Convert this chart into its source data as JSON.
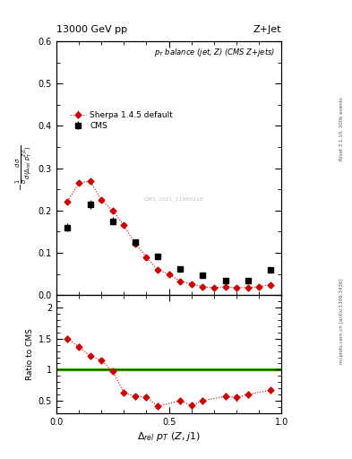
{
  "title_top": "13000 GeV pp",
  "title_right": "Z+Jet",
  "plot_title": "p_{T} balance (jet, Z) (CMS Z+jets)",
  "xlabel": "\\Delta_{rel} p_{T} (Z,j1)",
  "ylabel_main": "-1/sigma dsigma/d(Delta_rel p_T^{Zj1})",
  "ylabel_ratio": "Ratio to CMS",
  "watermark": "CMS_2021_11966118",
  "rivet_text": "Rivet 3.1.10, 300k events",
  "arxiv_text": "mcplots.cern.ch [arXiv:1306.3436]",
  "cms_x": [
    0.05,
    0.15,
    0.25,
    0.35,
    0.45,
    0.55,
    0.65,
    0.75,
    0.85,
    0.95
  ],
  "cms_y": [
    0.16,
    0.215,
    0.175,
    0.125,
    0.092,
    0.063,
    0.047,
    0.035,
    0.035,
    0.06
  ],
  "cms_yerr": [
    0.01,
    0.01,
    0.01,
    0.008,
    0.007,
    0.005,
    0.004,
    0.003,
    0.003,
    0.005
  ],
  "sherpa_x": [
    0.05,
    0.1,
    0.15,
    0.2,
    0.25,
    0.3,
    0.35,
    0.4,
    0.45,
    0.5,
    0.55,
    0.6,
    0.65,
    0.7,
    0.75,
    0.8,
    0.85,
    0.9,
    0.95
  ],
  "sherpa_y": [
    0.222,
    0.265,
    0.27,
    0.225,
    0.2,
    0.165,
    0.122,
    0.09,
    0.06,
    0.05,
    0.033,
    0.027,
    0.02,
    0.018,
    0.02,
    0.018,
    0.018,
    0.02,
    0.025
  ],
  "sherpa_yerr": [
    0.005,
    0.006,
    0.006,
    0.005,
    0.005,
    0.004,
    0.004,
    0.003,
    0.003,
    0.002,
    0.002,
    0.002,
    0.002,
    0.002,
    0.002,
    0.002,
    0.002,
    0.002,
    0.002
  ],
  "ratio_x": [
    0.05,
    0.1,
    0.15,
    0.2,
    0.25,
    0.3,
    0.35,
    0.4,
    0.45,
    0.55,
    0.6,
    0.65,
    0.75,
    0.8,
    0.85,
    0.95
  ],
  "ratio_y": [
    1.5,
    1.37,
    1.22,
    1.15,
    0.97,
    0.63,
    0.57,
    0.56,
    0.41,
    0.5,
    0.42,
    0.5,
    0.57,
    0.55,
    0.6,
    0.67
  ],
  "ratio_yerr": [
    0.06,
    0.05,
    0.04,
    0.04,
    0.04,
    0.05,
    0.05,
    0.05,
    0.06,
    0.06,
    0.07,
    0.06,
    0.06,
    0.06,
    0.06,
    0.06
  ],
  "xlim": [
    0.0,
    1.0
  ],
  "ylim_main": [
    0.0,
    0.6
  ],
  "ylim_ratio": [
    0.3,
    2.2
  ],
  "cms_color": "#000000",
  "sherpa_color": "#cc0000",
  "ref_line_color": "#44aa00",
  "background_color": "#ffffff"
}
